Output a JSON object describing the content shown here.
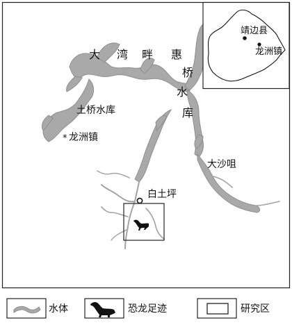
{
  "map": {
    "labels": {
      "dawan_chars": [
        "大",
        "湾",
        "畔",
        "惠"
      ],
      "qiao": "桥",
      "shui": "水",
      "ku": "库",
      "tuqiao_reservoir": "土桥水库",
      "longzhou_town": "龙洲镇",
      "dasha_zui": "大沙咀",
      "baitu_ping": "白土坪"
    },
    "inset": {
      "county": "靖边县",
      "town": "龙洲镇"
    }
  },
  "legend": {
    "water": "水体",
    "footprint": "恐龙足迹",
    "study_area": "研究区"
  },
  "colors": {
    "water": "#a9a9a9",
    "frame": "#222222"
  }
}
